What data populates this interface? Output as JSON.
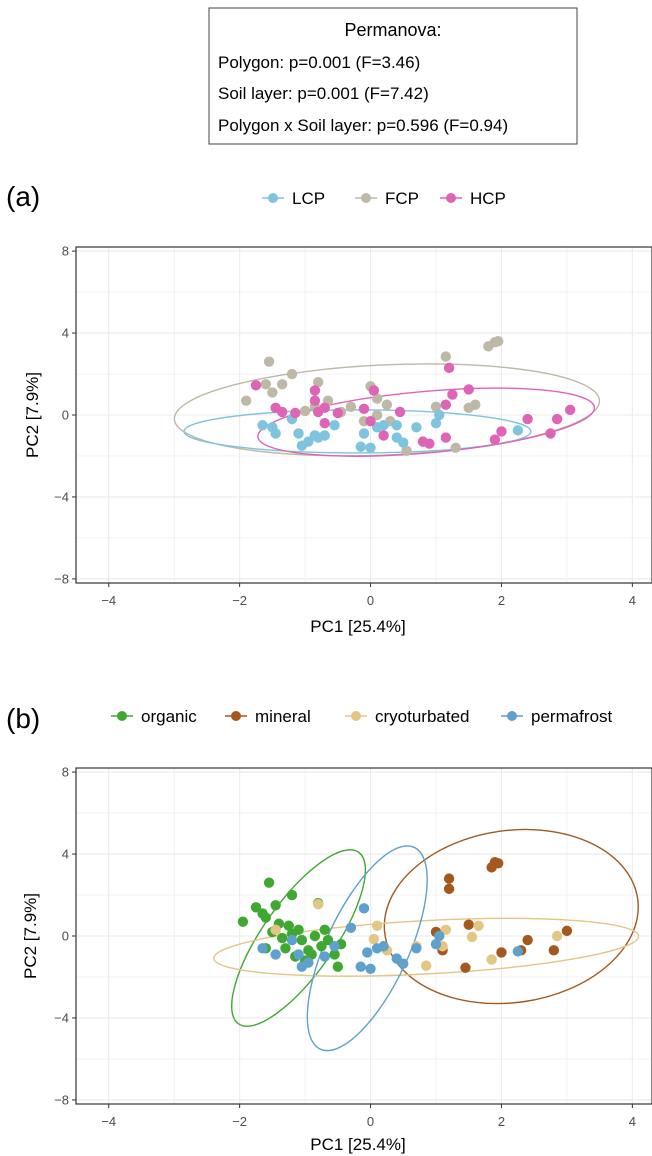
{
  "stats_box": {
    "title": "Permanova:",
    "lines": [
      "Polygon: p=0.001 (F=3.46)",
      "Soil layer: p=0.001 (F=7.42)",
      "Polygon x Soil layer: p=0.596 (F=0.94)"
    ]
  },
  "colors": {
    "LCP": "#7EC4DF",
    "FCP": "#BDB9A6",
    "HCP": "#DE64B5",
    "organic": "#3FA830",
    "mineral": "#A5581E",
    "cryoturbated": "#E3C585",
    "permafrost": "#5DA1CC",
    "grid": "#EBEBEB",
    "panel_border": "#333333"
  },
  "chart_data": [
    {
      "type": "scatter",
      "panel_label": "(a)",
      "xlabel": "PC1   [25.4%]",
      "ylabel": "PC2   [7.9%]",
      "xlim": [
        -4.5,
        4.3
      ],
      "ylim": [
        -8.2,
        8.2
      ],
      "xticks": [
        -4,
        -2,
        0,
        2,
        4
      ],
      "yticks": [
        -8,
        -4,
        0,
        4,
        8
      ],
      "xtick_labels": [
        "−4",
        "−2",
        "0",
        "2",
        "4"
      ],
      "ytick_labels": [
        "−8",
        "−4",
        "0",
        "4",
        "8"
      ],
      "grid": true,
      "legend_position": "top",
      "legend": [
        "LCP",
        "FCP",
        "HCP"
      ],
      "series": [
        {
          "name": "FCP",
          "ellipse": {
            "cx": 0.25,
            "cy": 0.25,
            "rx": 3.25,
            "ry": 2.2,
            "angle": -2.5
          },
          "points": [
            [
              -1.55,
              2.6
            ],
            [
              -1.2,
              2.0
            ],
            [
              -1.35,
              1.5
            ],
            [
              -1.6,
              1.5
            ],
            [
              -1.9,
              0.7
            ],
            [
              -1.5,
              1.1
            ],
            [
              -0.8,
              1.6
            ],
            [
              -0.65,
              0.7
            ],
            [
              -0.85,
              0.4
            ],
            [
              -1.0,
              0.2
            ],
            [
              -0.3,
              0.4
            ],
            [
              -0.45,
              0.15
            ],
            [
              0.0,
              1.4
            ],
            [
              0.1,
              0.8
            ],
            [
              0.25,
              0.5
            ],
            [
              0.3,
              -0.3
            ],
            [
              -0.1,
              -0.3
            ],
            [
              0.1,
              0.0
            ],
            [
              0.55,
              -1.75
            ],
            [
              1.0,
              0.4
            ],
            [
              1.15,
              2.85
            ],
            [
              1.3,
              -1.6
            ],
            [
              1.5,
              0.35
            ],
            [
              1.6,
              0.5
            ],
            [
              1.8,
              3.35
            ],
            [
              1.9,
              3.55
            ],
            [
              1.95,
              3.6
            ]
          ]
        },
        {
          "name": "LCP",
          "ellipse": {
            "cx": -0.2,
            "cy": -0.8,
            "rx": 2.65,
            "ry": 1.05,
            "angle": 0
          },
          "points": [
            [
              -1.65,
              -0.5
            ],
            [
              -1.5,
              -0.6
            ],
            [
              -1.45,
              -0.9
            ],
            [
              -1.2,
              -0.2
            ],
            [
              -1.1,
              -0.9
            ],
            [
              -1.05,
              -1.5
            ],
            [
              -0.95,
              -1.3
            ],
            [
              -0.85,
              -1.0
            ],
            [
              -0.8,
              -1.1
            ],
            [
              -0.7,
              -1.0
            ],
            [
              -0.55,
              -0.5
            ],
            [
              -0.15,
              -1.55
            ],
            [
              -0.1,
              -0.9
            ],
            [
              0.0,
              -1.6
            ],
            [
              0.1,
              -0.6
            ],
            [
              0.2,
              -0.5
            ],
            [
              0.4,
              -1.1
            ],
            [
              0.4,
              -0.5
            ],
            [
              0.5,
              -1.35
            ],
            [
              0.7,
              -0.6
            ],
            [
              1.0,
              -0.4
            ],
            [
              1.05,
              0.0
            ],
            [
              2.25,
              -0.75
            ]
          ]
        },
        {
          "name": "HCP",
          "ellipse": {
            "cx": 0.85,
            "cy": -0.35,
            "rx": 2.58,
            "ry": 1.5,
            "angle": -5
          },
          "points": [
            [
              -1.75,
              1.45
            ],
            [
              -1.45,
              0.35
            ],
            [
              -1.35,
              0.15
            ],
            [
              -1.15,
              0.1
            ],
            [
              -0.85,
              1.2
            ],
            [
              -0.85,
              0.7
            ],
            [
              -0.8,
              0.15
            ],
            [
              -0.7,
              -0.4
            ],
            [
              -0.7,
              0.35
            ],
            [
              -0.5,
              0.1
            ],
            [
              -0.1,
              0.3
            ],
            [
              0.0,
              -0.3
            ],
            [
              0.05,
              1.2
            ],
            [
              0.2,
              -1.0
            ],
            [
              0.45,
              0.15
            ],
            [
              0.8,
              -1.3
            ],
            [
              0.9,
              -1.4
            ],
            [
              1.15,
              0.5
            ],
            [
              1.15,
              -1.1
            ],
            [
              1.2,
              2.3
            ],
            [
              1.25,
              1.0
            ],
            [
              1.5,
              1.25
            ],
            [
              1.9,
              -1.2
            ],
            [
              2.0,
              -0.8
            ],
            [
              2.4,
              -0.2
            ],
            [
              2.75,
              -0.9
            ],
            [
              2.85,
              -0.2
            ],
            [
              3.05,
              0.25
            ]
          ]
        }
      ]
    },
    {
      "type": "scatter",
      "panel_label": "(b)",
      "xlabel": "PC1   [25.4%]",
      "ylabel": "PC2   [7.9%]",
      "xlim": [
        -4.5,
        4.3
      ],
      "ylim": [
        -8.2,
        8.2
      ],
      "xticks": [
        -4,
        -2,
        0,
        2,
        4
      ],
      "yticks": [
        -8,
        -4,
        0,
        4,
        8
      ],
      "xtick_labels": [
        "−4",
        "−2",
        "0",
        "2",
        "4"
      ],
      "ytick_labels": [
        "−8",
        "−4",
        "0",
        "4",
        "8"
      ],
      "grid": true,
      "legend_position": "top",
      "legend": [
        "organic",
        "mineral",
        "cryoturbated",
        "permafrost"
      ],
      "series": [
        {
          "name": "organic",
          "ellipse": {
            "cx": -1.1,
            "cy": -0.1,
            "rx": 1.6,
            "ry": 1.75,
            "angle": -55
          },
          "points": [
            [
              -1.95,
              0.7
            ],
            [
              -1.75,
              1.4
            ],
            [
              -1.6,
              0.9
            ],
            [
              -1.55,
              2.6
            ],
            [
              -1.45,
              1.5
            ],
            [
              -1.4,
              0.6
            ],
            [
              -1.35,
              -0.1
            ],
            [
              -1.25,
              0.5
            ],
            [
              -1.2,
              2.0
            ],
            [
              -1.6,
              -0.6
            ],
            [
              -1.5,
              0.2
            ],
            [
              -1.3,
              -0.6
            ],
            [
              -1.2,
              0.1
            ],
            [
              -1.15,
              -1.0
            ],
            [
              -1.05,
              -0.2
            ],
            [
              -1.0,
              -1.2
            ],
            [
              -0.95,
              -0.7
            ],
            [
              -0.9,
              -0.9
            ],
            [
              -0.85,
              0.0
            ],
            [
              -0.8,
              1.6
            ],
            [
              -0.75,
              -0.5
            ],
            [
              -0.7,
              0.3
            ],
            [
              -0.65,
              -0.2
            ],
            [
              -0.55,
              -0.9
            ],
            [
              -0.5,
              -1.5
            ],
            [
              -0.45,
              -0.4
            ],
            [
              -1.65,
              1.1
            ],
            [
              -1.1,
              0.3
            ]
          ]
        },
        {
          "name": "mineral",
          "ellipse": {
            "cx": 2.15,
            "cy": 0.95,
            "rx": 1.95,
            "ry": 4.2,
            "angle": -8
          },
          "points": [
            [
              1.0,
              0.2
            ],
            [
              1.1,
              -0.7
            ],
            [
              1.2,
              2.3
            ],
            [
              1.2,
              2.8
            ],
            [
              1.45,
              -1.55
            ],
            [
              1.5,
              0.55
            ],
            [
              1.85,
              3.35
            ],
            [
              1.9,
              3.6
            ],
            [
              1.95,
              3.55
            ],
            [
              2.0,
              -0.8
            ],
            [
              2.3,
              -0.7
            ],
            [
              2.4,
              -0.2
            ],
            [
              2.8,
              -0.7
            ],
            [
              3.0,
              0.25
            ]
          ]
        },
        {
          "name": "cryoturbated",
          "ellipse": {
            "cx": 0.85,
            "cy": -0.55,
            "rx": 3.25,
            "ry": 1.3,
            "angle": -3
          },
          "points": [
            [
              -1.45,
              0.3
            ],
            [
              -0.8,
              1.55
            ],
            [
              0.05,
              -0.15
            ],
            [
              0.1,
              0.5
            ],
            [
              0.25,
              -0.7
            ],
            [
              0.7,
              -0.5
            ],
            [
              0.85,
              -1.45
            ],
            [
              1.1,
              -0.5
            ],
            [
              1.15,
              0.3
            ],
            [
              1.55,
              -0.05
            ],
            [
              1.65,
              0.5
            ],
            [
              1.85,
              -1.15
            ],
            [
              2.85,
              0.0
            ]
          ]
        },
        {
          "name": "permafrost",
          "ellipse": {
            "cx": -0.05,
            "cy": -0.6,
            "rx": 1.7,
            "ry": 2.0,
            "angle": -65
          },
          "points": [
            [
              -1.65,
              -0.6
            ],
            [
              -1.45,
              -0.9
            ],
            [
              -1.2,
              -0.2
            ],
            [
              -1.1,
              -0.9
            ],
            [
              -1.05,
              -1.5
            ],
            [
              -0.95,
              -1.3
            ],
            [
              -0.7,
              -1.0
            ],
            [
              -0.55,
              -0.5
            ],
            [
              -0.15,
              -1.5
            ],
            [
              -0.05,
              -0.8
            ],
            [
              0.0,
              -1.6
            ],
            [
              0.1,
              -0.6
            ],
            [
              0.2,
              -0.5
            ],
            [
              0.4,
              -1.1
            ],
            [
              0.5,
              -1.35
            ],
            [
              0.7,
              -0.6
            ],
            [
              1.0,
              -0.4
            ],
            [
              1.05,
              0.0
            ],
            [
              2.25,
              -0.75
            ],
            [
              -0.3,
              0.4
            ],
            [
              -0.1,
              1.35
            ]
          ]
        }
      ]
    }
  ]
}
